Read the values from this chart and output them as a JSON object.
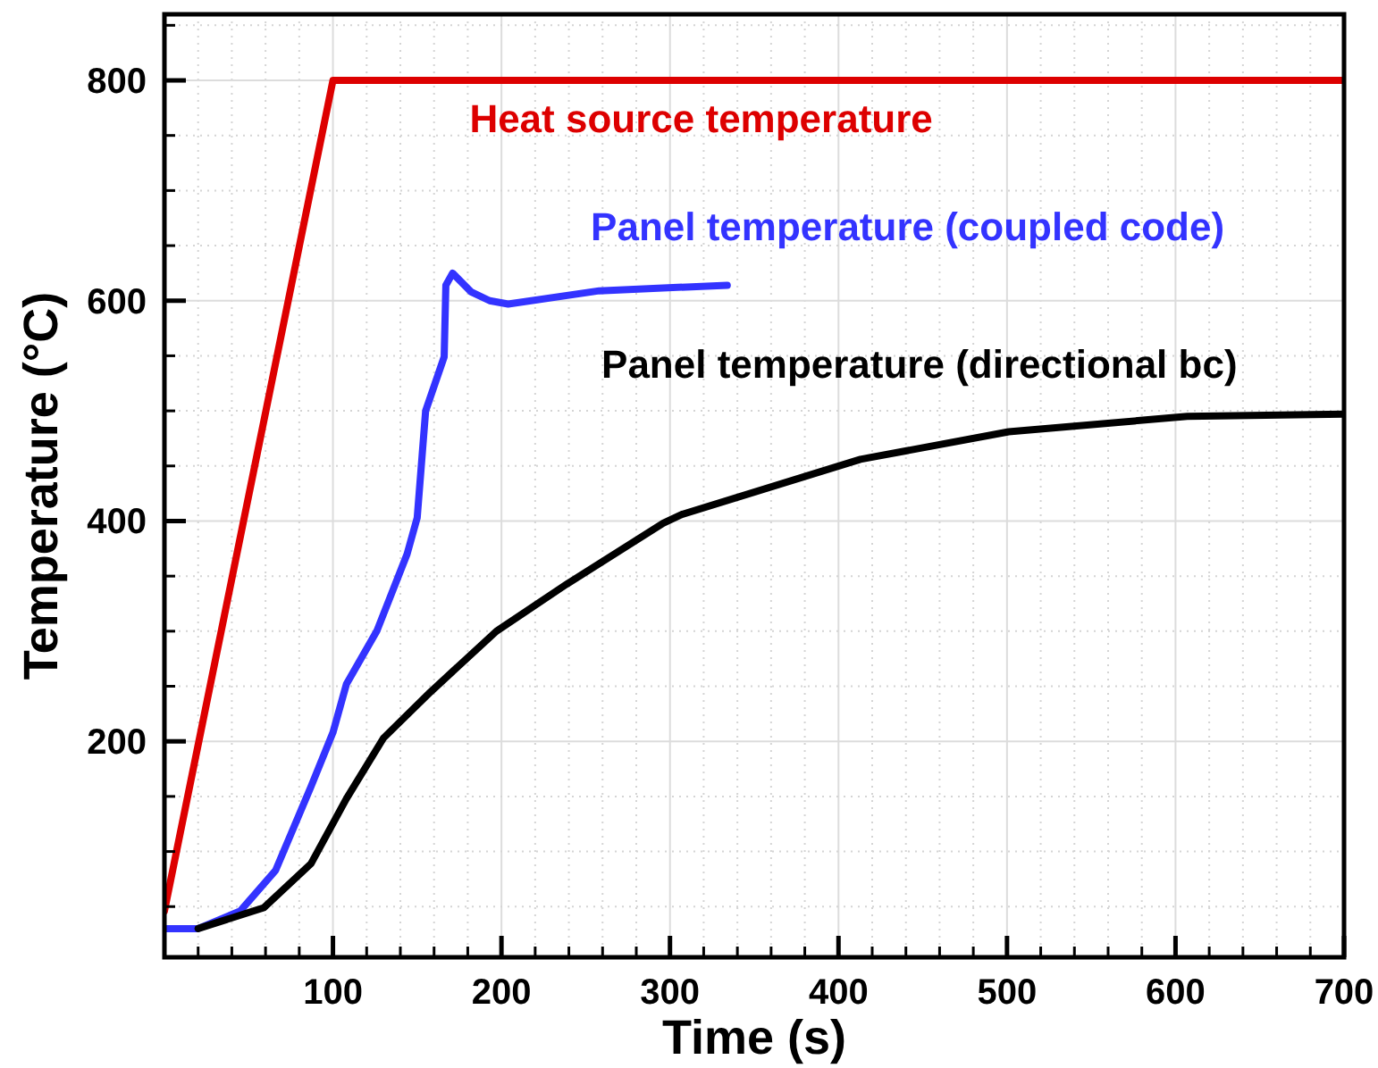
{
  "chart_data": {
    "type": "line",
    "xlabel": "Time (s)",
    "ylabel": "Temperature (°C)",
    "xlim": [
      0,
      700
    ],
    "ylim": [
      4,
      860
    ],
    "xticks": [
      {
        "value": 20,
        "label": null
      },
      {
        "value": 40,
        "label": null
      },
      {
        "value": 60,
        "label": null
      },
      {
        "value": 80,
        "label": null
      },
      100,
      {
        "value": 120,
        "label": null
      },
      {
        "value": 140,
        "label": null
      },
      {
        "value": 160,
        "label": null
      },
      {
        "value": 180,
        "label": null
      },
      200,
      {
        "value": 220,
        "label": null
      },
      {
        "value": 240,
        "label": null
      },
      {
        "value": 260,
        "label": null
      },
      {
        "value": 280,
        "label": null
      },
      300,
      {
        "value": 320,
        "label": null
      },
      {
        "value": 340,
        "label": null
      },
      {
        "value": 360,
        "label": null
      },
      {
        "value": 380,
        "label": null
      },
      400,
      {
        "value": 420,
        "label": null
      },
      {
        "value": 440,
        "label": null
      },
      {
        "value": 460,
        "label": null
      },
      {
        "value": 480,
        "label": null
      },
      500,
      {
        "value": 520,
        "label": null
      },
      {
        "value": 540,
        "label": null
      },
      {
        "value": 560,
        "label": null
      },
      {
        "value": 580,
        "label": null
      },
      600,
      {
        "value": 620,
        "label": null
      },
      {
        "value": 640,
        "label": null
      },
      {
        "value": 660,
        "label": null
      },
      {
        "value": 680,
        "label": null
      },
      700
    ],
    "yticks": [
      {
        "value": 50,
        "label": null
      },
      {
        "value": 100,
        "label": null
      },
      {
        "value": 150,
        "label": null
      },
      200,
      {
        "value": 250,
        "label": null
      },
      {
        "value": 300,
        "label": null
      },
      {
        "value": 350,
        "label": null
      },
      400,
      {
        "value": 450,
        "label": null
      },
      {
        "value": 500,
        "label": null
      },
      {
        "value": 550,
        "label": null
      },
      600,
      {
        "value": 650,
        "label": null
      },
      {
        "value": 700,
        "label": null
      },
      {
        "value": 750,
        "label": null
      },
      800,
      {
        "value": 850,
        "label": null
      }
    ],
    "grid": true,
    "legend": false,
    "line_style": "solid",
    "marker": "none",
    "series": [
      {
        "name": "Heat source temperature",
        "color": "#dd0000",
        "x": [
          0,
          100,
          700
        ],
        "values": [
          46,
          800,
          800
        ]
      },
      {
        "name": "Panel temperature (coupled code)",
        "color": "#3333ff",
        "x": [
          0,
          20,
          45,
          66,
          87,
          100,
          108,
          126,
          144,
          150,
          155,
          166,
          167,
          171,
          182,
          193,
          204,
          258,
          334
        ],
        "values": [
          30,
          30,
          46,
          83,
          159,
          208,
          252,
          300,
          370,
          403,
          500,
          549,
          614,
          625,
          608,
          600,
          597,
          609,
          614
        ]
      },
      {
        "name": "Panel temperature (directional bc)",
        "color": "#000000",
        "x": [
          20,
          59,
          87,
          108,
          130,
          158,
          197,
          239,
          296,
          307,
          413,
          501,
          607,
          700
        ],
        "values": [
          30,
          49,
          89,
          148,
          203,
          245,
          300,
          343,
          398,
          406,
          456,
          481,
          495,
          497
        ]
      }
    ]
  }
}
